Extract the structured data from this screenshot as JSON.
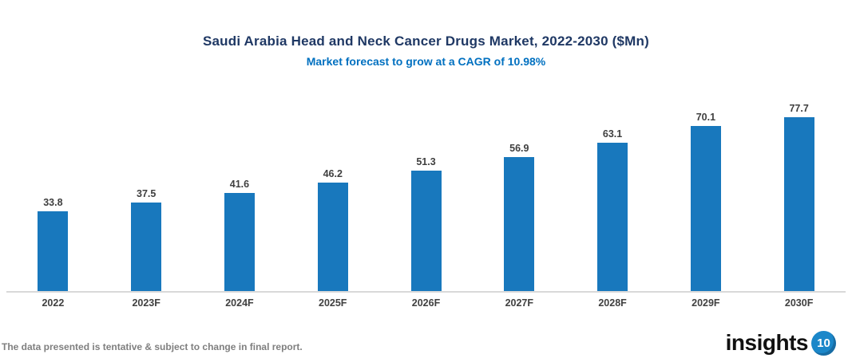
{
  "header": {
    "title": "Saudi Arabia Head and Neck Cancer Drugs Market, 2022-2030 ($Mn)",
    "subtitle": "Market forecast to grow at a CAGR of 10.98%",
    "title_color": "#1f3864",
    "subtitle_color": "#0070c0"
  },
  "chart_data": {
    "type": "bar",
    "categories": [
      "2022",
      "2023F",
      "2024F",
      "2025F",
      "2026F",
      "2027F",
      "2028F",
      "2029F",
      "2030F"
    ],
    "values": [
      33.8,
      37.5,
      41.6,
      46.2,
      51.3,
      56.9,
      63.1,
      70.1,
      77.7
    ],
    "title": "Saudi Arabia Head and Neck Cancer Drugs Market, 2022-2030 ($Mn)",
    "subtitle": "Market forecast to grow at a CAGR of 10.98%",
    "xlabel": "",
    "ylabel": "",
    "ylim": [
      0,
      80
    ],
    "grid": false,
    "legend": "none",
    "data_labels": true,
    "bar_color": "#1878bd",
    "label_color": "#3f3f3f",
    "axis_line_color": "#d9d9d9"
  },
  "footer": {
    "disclaimer": "The data presented is tentative & subject to change in final report."
  },
  "logo": {
    "text": "insights",
    "badge": "10",
    "badge_color": "#1b87c9"
  }
}
